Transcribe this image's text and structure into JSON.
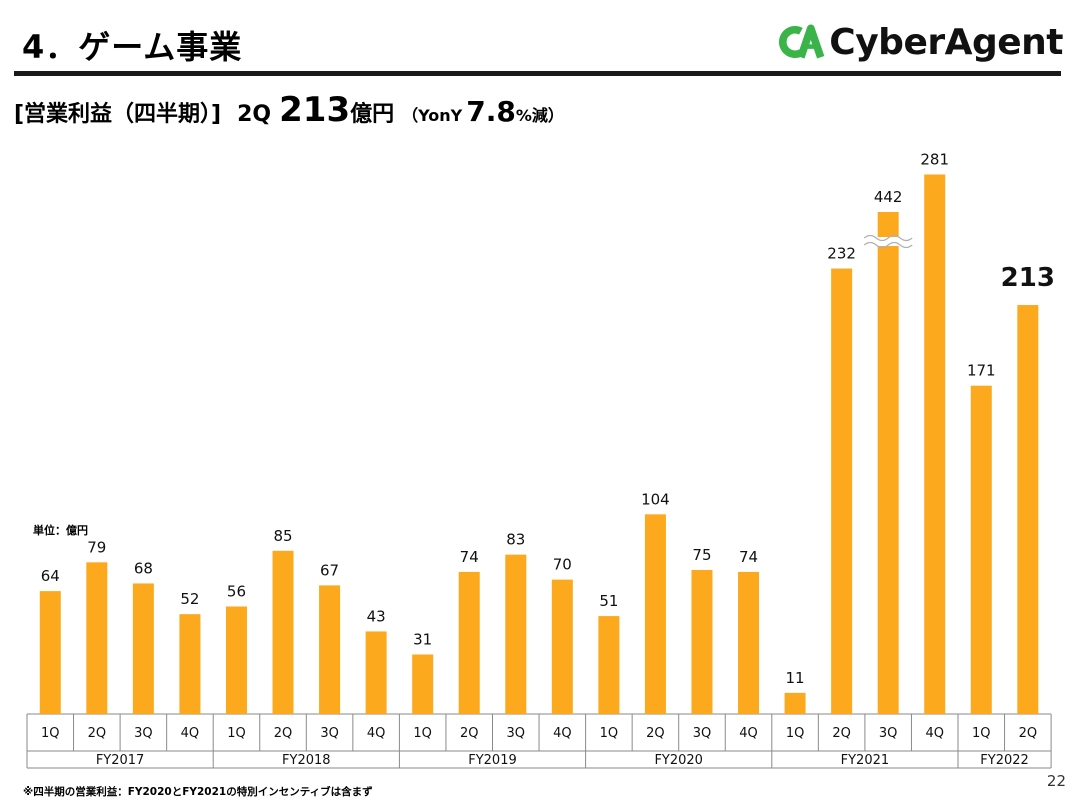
{
  "header": {
    "title": "4．ゲーム事業",
    "logo_text": "CyberAgent",
    "logo_mark": "CA",
    "logo_color": "#3ab449"
  },
  "subtitle": {
    "label": "[営業利益（四半期）]",
    "quarter": "2Q",
    "value": "213",
    "unit": "億円",
    "yoy_prefix": "（YonY",
    "yoy_value": "7.8",
    "yoy_suffix": "%減）"
  },
  "unit_note": "単位：億円",
  "footnote": "※四半期の営業利益：FY2020とFY2021の特別インセンティブは含まず",
  "page_number": "22",
  "chart_data": {
    "type": "bar",
    "title": "営業利益（四半期）",
    "ylabel": "億円",
    "ylim": [
      0,
      300
    ],
    "bar_color": "#fca91e",
    "axis_break": "FY2021 3Q",
    "categories": [
      "1Q",
      "2Q",
      "3Q",
      "4Q",
      "1Q",
      "2Q",
      "3Q",
      "4Q",
      "1Q",
      "2Q",
      "3Q",
      "4Q",
      "1Q",
      "2Q",
      "3Q",
      "4Q",
      "1Q",
      "2Q",
      "3Q",
      "4Q",
      "1Q",
      "2Q"
    ],
    "values": [
      64,
      79,
      68,
      52,
      56,
      85,
      67,
      43,
      31,
      74,
      83,
      70,
      51,
      104,
      75,
      74,
      11,
      232,
      442,
      281,
      171,
      213
    ],
    "labels": [
      "64",
      "79",
      "68",
      "52",
      "56",
      "85",
      "67",
      "43",
      "31",
      "74",
      "83",
      "70",
      "51",
      "104",
      "75",
      "74",
      "11",
      "232",
      "442",
      "281",
      "171",
      "213"
    ],
    "highlight_index": 21,
    "groups": [
      {
        "name": "FY2017",
        "count": 4
      },
      {
        "name": "FY2018",
        "count": 4
      },
      {
        "name": "FY2019",
        "count": 4
      },
      {
        "name": "FY2020",
        "count": 4
      },
      {
        "name": "FY2021",
        "count": 4
      },
      {
        "name": "FY2022",
        "count": 2
      }
    ]
  }
}
